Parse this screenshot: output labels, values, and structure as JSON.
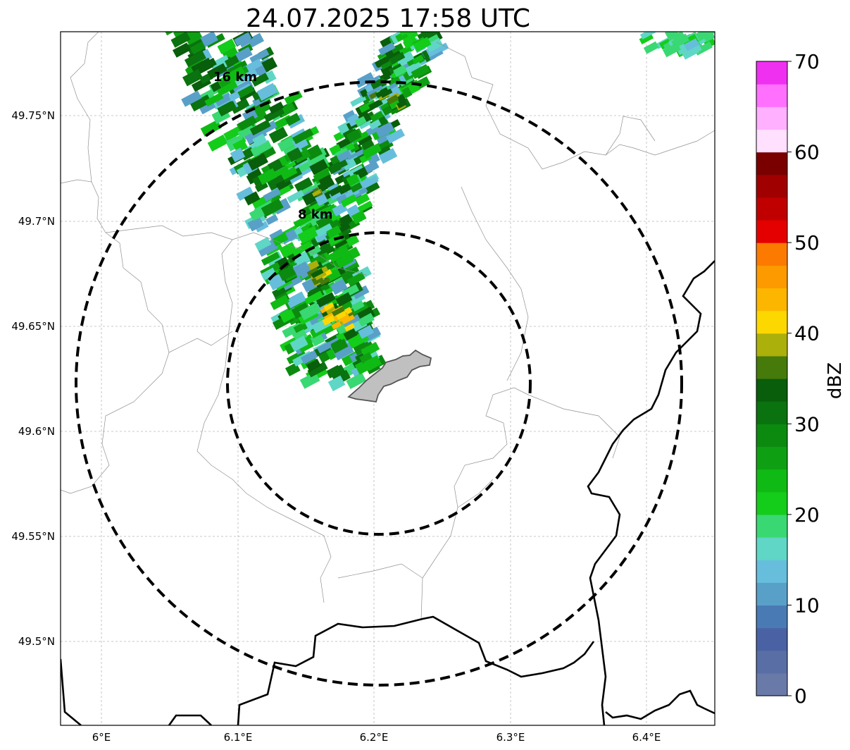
{
  "title": "24.07.2025 17:58 UTC",
  "ring_labels": [
    "16 km",
    "8 km"
  ],
  "lat_ticks": [
    "49.75°N",
    "49.7°N",
    "49.65°N",
    "49.6°N",
    "49.55°N",
    "49.5°N"
  ],
  "lon_ticks": [
    "6°E",
    "6.1°E",
    "6.2°E",
    "6.3°E",
    "6.4°E"
  ],
  "colorbar": {
    "label": "dBZ",
    "ticks": [
      "0",
      "10",
      "20",
      "30",
      "40",
      "50",
      "60",
      "70"
    ],
    "colors": [
      "#6a7aa8",
      "#5a6ea6",
      "#4a62a4",
      "#4a7ab4",
      "#58a0c8",
      "#66bedc",
      "#60d6c6",
      "#3ad872",
      "#14cc1a",
      "#10ba14",
      "#0ea012",
      "#0c8a10",
      "#0a720e",
      "#085e0a",
      "#467a0a",
      "#acb00a",
      "#fcd800",
      "#fcb600",
      "#fc9a00",
      "#fc7a00",
      "#e40000",
      "#c00000",
      "#a00000",
      "#7a0000",
      "#ffe0ff",
      "#ffb0ff",
      "#ff70ff",
      "#f030f0"
    ]
  },
  "colors": {
    "rings": "#000000",
    "borders": "#000000",
    "region": "#888888",
    "area_fill": "#c0c0c0"
  }
}
